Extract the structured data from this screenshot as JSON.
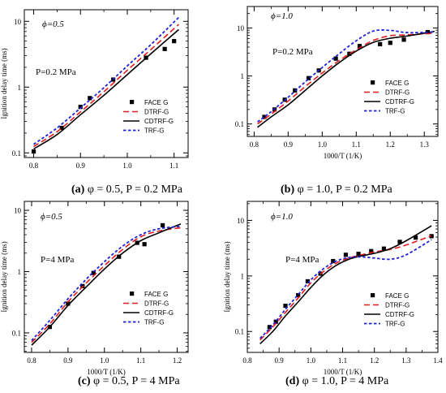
{
  "chart_data": [
    {
      "type": "scatter",
      "caption_letter": "(a)",
      "caption_text": " φ = 0.5, P = 0.2 MPa",
      "phi_label": "ϕ=0.5",
      "p_label": "P=0.2 MPa",
      "ylabel": "Ignition delay time (ms)",
      "xlabel": "",
      "xlim": [
        0.78,
        1.13
      ],
      "ylim_log": [
        0.085,
        15
      ],
      "xticks": [
        0.8,
        0.9,
        1.0,
        1.1
      ],
      "xtick_labels": [
        "0.8",
        "0.9",
        "1.0",
        "1.1"
      ],
      "yticks": [
        0.1,
        1,
        10
      ],
      "ytick_labels": [
        "0.1",
        "1",
        "10"
      ],
      "legend": [
        "FACE G",
        "DTRF-G",
        "CDTRF-G",
        "TRF-G"
      ],
      "legend_position": "bottom-right",
      "series": [
        {
          "name": "FACE G",
          "kind": "markers",
          "x": [
            0.8,
            0.86,
            0.9,
            0.92,
            0.97,
            1.04,
            1.08,
            1.1
          ],
          "y": [
            0.105,
            0.24,
            0.5,
            0.68,
            1.3,
            2.8,
            3.8,
            5.0
          ]
        },
        {
          "name": "DTRF-G",
          "kind": "red-dash",
          "x": [
            0.8,
            0.85,
            0.9,
            0.95,
            1.0,
            1.05,
            1.11
          ],
          "y": [
            0.125,
            0.21,
            0.42,
            0.85,
            1.8,
            3.7,
            9.0
          ]
        },
        {
          "name": "CDTRF-G",
          "kind": "black-solid",
          "x": [
            0.8,
            0.85,
            0.9,
            0.95,
            1.0,
            1.05,
            1.11
          ],
          "y": [
            0.115,
            0.19,
            0.38,
            0.75,
            1.55,
            3.2,
            7.5
          ]
        },
        {
          "name": "TRF-G",
          "kind": "blue-short-dash",
          "x": [
            0.8,
            0.85,
            0.9,
            0.95,
            1.0,
            1.05,
            1.11
          ],
          "y": [
            0.135,
            0.24,
            0.48,
            0.98,
            2.1,
            4.4,
            11.5
          ]
        }
      ]
    },
    {
      "type": "scatter",
      "caption_letter": "(b)",
      "caption_text": " φ = 1.0, P = 0.2 MPa",
      "phi_label": "ϕ=1.0",
      "p_label": "P=0.2 MPa",
      "ylabel": "",
      "xlabel": "1000/T (1/K)",
      "xlim": [
        0.78,
        1.34
      ],
      "ylim_log": [
        0.055,
        28
      ],
      "xticks": [
        0.8,
        0.9,
        1.0,
        1.1,
        1.2,
        1.3
      ],
      "xtick_labels": [
        "0.8",
        "0.9",
        "1.0",
        "1.1",
        "1.2",
        "1.3"
      ],
      "yticks": [
        0.1,
        1,
        10
      ],
      "ytick_labels": [
        "0.1",
        "1",
        "10"
      ],
      "legend": [
        "FACE G",
        "DTRF-G",
        "CDTRF-G",
        "TRF-G"
      ],
      "legend_position": "bottom-right",
      "series": [
        {
          "name": "FACE G",
          "kind": "markers",
          "x": [
            0.83,
            0.86,
            0.89,
            0.92,
            0.96,
            0.99,
            1.04,
            1.08,
            1.11,
            1.17,
            1.2,
            1.24,
            1.31
          ],
          "y": [
            0.14,
            0.2,
            0.32,
            0.5,
            0.9,
            1.3,
            2.3,
            2.9,
            4.2,
            4.6,
            4.9,
            5.7,
            8.2
          ]
        },
        {
          "name": "DTRF-G",
          "kind": "red-dash",
          "x": [
            0.81,
            0.85,
            0.9,
            0.95,
            1.0,
            1.05,
            1.1,
            1.15,
            1.2,
            1.25,
            1.33
          ],
          "y": [
            0.1,
            0.16,
            0.3,
            0.6,
            1.15,
            2.1,
            3.5,
            5.5,
            6.9,
            7.2,
            7.8
          ]
        },
        {
          "name": "CDTRF-G",
          "kind": "black-solid",
          "x": [
            0.81,
            0.85,
            0.9,
            0.95,
            1.0,
            1.05,
            1.1,
            1.15,
            1.2,
            1.25,
            1.33
          ],
          "y": [
            0.085,
            0.14,
            0.25,
            0.5,
            1.0,
            1.9,
            3.3,
            5.0,
            6.1,
            6.8,
            8.5
          ]
        },
        {
          "name": "TRF-G",
          "kind": "blue-short-dash",
          "x": [
            0.81,
            0.85,
            0.9,
            0.95,
            1.0,
            1.05,
            1.1,
            1.15,
            1.2,
            1.25,
            1.33
          ],
          "y": [
            0.11,
            0.18,
            0.36,
            0.75,
            1.5,
            2.9,
            5.4,
            8.6,
            8.9,
            8.0,
            8.2
          ]
        }
      ]
    },
    {
      "type": "scatter",
      "caption_letter": "(c)",
      "caption_text": " φ = 0.5, P = 4 MPa",
      "phi_label": "ϕ=0.5",
      "p_label": "P=4 MPa",
      "ylabel": "Ignition delay time (ms)",
      "xlabel": "1000/T (1/K)",
      "xlim": [
        0.78,
        1.23
      ],
      "ylim_log": [
        0.048,
        14
      ],
      "xticks": [
        0.8,
        0.9,
        1.0,
        1.1,
        1.2
      ],
      "xtick_labels": [
        "0.8",
        "0.9",
        "1.0",
        "1.1",
        "1.2"
      ],
      "yticks": [
        0.1,
        1,
        10
      ],
      "ytick_labels": [
        "0.1",
        "1",
        "10"
      ],
      "legend": [
        "FACE G",
        "DTRF-G",
        "CDTRF-G",
        "TRF-G"
      ],
      "legend_position": "bottom-right",
      "series": [
        {
          "name": "FACE G",
          "kind": "markers",
          "x": [
            0.85,
            0.9,
            0.94,
            0.97,
            1.04,
            1.09,
            1.11,
            1.16
          ],
          "y": [
            0.125,
            0.3,
            0.58,
            0.95,
            1.75,
            2.95,
            2.8,
            5.7
          ]
        },
        {
          "name": "DTRF-G",
          "kind": "red-dash",
          "x": [
            0.8,
            0.85,
            0.9,
            0.95,
            1.0,
            1.05,
            1.1,
            1.15,
            1.21
          ],
          "y": [
            0.07,
            0.14,
            0.32,
            0.65,
            1.25,
            2.3,
            3.7,
            4.6,
            5.2
          ]
        },
        {
          "name": "CDTRF-G",
          "kind": "black-solid",
          "x": [
            0.8,
            0.85,
            0.9,
            0.95,
            1.0,
            1.05,
            1.1,
            1.15,
            1.21
          ],
          "y": [
            0.063,
            0.125,
            0.28,
            0.56,
            1.1,
            2.0,
            3.2,
            4.3,
            6.0
          ]
        },
        {
          "name": "TRF-G",
          "kind": "blue-short-dash",
          "x": [
            0.8,
            0.85,
            0.9,
            0.95,
            1.0,
            1.05,
            1.1,
            1.15,
            1.21
          ],
          "y": [
            0.075,
            0.16,
            0.36,
            0.75,
            1.45,
            2.6,
            4.0,
            5.0,
            5.5
          ]
        }
      ]
    },
    {
      "type": "scatter",
      "caption_letter": "(d)",
      "caption_text": " φ = 1.0, P = 4 MPa",
      "phi_label": "ϕ=1.0",
      "p_label": "P=4 MPa",
      "ylabel": "Ignition delay time (ms)",
      "xlabel": "1000/T (1/K)",
      "xlim": [
        0.8,
        1.4
      ],
      "ylim_log": [
        0.042,
        22
      ],
      "xticks": [
        0.8,
        0.9,
        1.0,
        1.1,
        1.2,
        1.3,
        1.4
      ],
      "xtick_labels": [
        "0.8",
        "0.9",
        "1.0",
        "1.1",
        "1.2",
        "1.3",
        "1.4"
      ],
      "yticks": [
        0.1,
        1,
        10
      ],
      "ytick_labels": [
        "0.1",
        "1",
        "10"
      ],
      "legend": [
        "FACE G",
        "DTRF-G",
        "CDTRF-G",
        "TRF-G"
      ],
      "legend_position": "bottom-right",
      "series": [
        {
          "name": "FACE G",
          "kind": "markers",
          "x": [
            0.87,
            0.89,
            0.92,
            0.96,
            0.99,
            1.03,
            1.07,
            1.11,
            1.15,
            1.19,
            1.23,
            1.28,
            1.33,
            1.38
          ],
          "y": [
            0.12,
            0.15,
            0.29,
            0.45,
            0.8,
            1.1,
            1.85,
            2.4,
            2.5,
            2.8,
            3.1,
            4.1,
            4.9,
            5.2
          ]
        },
        {
          "name": "DTRF-G",
          "kind": "red-dash",
          "x": [
            0.84,
            0.88,
            0.92,
            0.96,
            1.0,
            1.04,
            1.08,
            1.12,
            1.16,
            1.2,
            1.25,
            1.3,
            1.38
          ],
          "y": [
            0.07,
            0.12,
            0.22,
            0.4,
            0.75,
            1.2,
            1.7,
            2.1,
            2.4,
            2.7,
            3.0,
            3.6,
            5.3
          ]
        },
        {
          "name": "CDTRF-G",
          "kind": "black-solid",
          "x": [
            0.84,
            0.88,
            0.92,
            0.96,
            1.0,
            1.04,
            1.08,
            1.12,
            1.16,
            1.2,
            1.25,
            1.3,
            1.38
          ],
          "y": [
            0.06,
            0.1,
            0.19,
            0.34,
            0.62,
            1.05,
            1.55,
            2.0,
            2.3,
            2.55,
            3.1,
            4.3,
            8.0
          ]
        },
        {
          "name": "TRF-G",
          "kind": "blue-short-dash",
          "x": [
            0.84,
            0.88,
            0.92,
            0.96,
            1.0,
            1.04,
            1.08,
            1.12,
            1.16,
            1.2,
            1.25,
            1.3,
            1.38
          ],
          "y": [
            0.075,
            0.13,
            0.25,
            0.46,
            0.85,
            1.35,
            1.85,
            2.15,
            2.2,
            2.1,
            2.0,
            2.4,
            4.5
          ]
        }
      ]
    }
  ],
  "colors": {
    "face": "#000000",
    "dtrf": "#e41a1c",
    "cdtrf": "#000000",
    "trf": "#1f23d6"
  }
}
